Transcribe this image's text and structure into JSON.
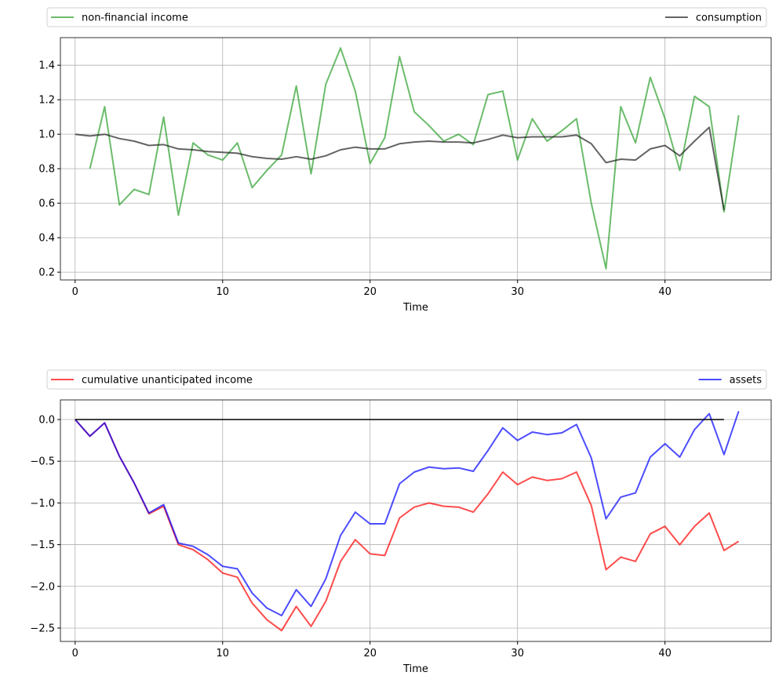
{
  "chart_data": [
    {
      "type": "line",
      "xlabel": "Time",
      "xlim": [
        -1,
        47.2
      ],
      "ylim": [
        0.155,
        1.56
      ],
      "xticks": [
        0,
        10,
        20,
        30,
        40
      ],
      "yticks": [
        0.2,
        0.4,
        0.6,
        0.8,
        1.0,
        1.2,
        1.4
      ],
      "grid": true,
      "legend_placement": "top, above plot (expanded)",
      "series": [
        {
          "name": "non-financial income",
          "color": "#2ca02c",
          "x_start": 1,
          "values": [
            0.8,
            1.16,
            0.59,
            0.68,
            0.65,
            1.1,
            0.53,
            0.95,
            0.88,
            0.85,
            0.95,
            0.69,
            0.79,
            0.88,
            1.28,
            0.77,
            1.29,
            1.5,
            1.25,
            0.83,
            0.98,
            1.45,
            1.13,
            1.05,
            0.96,
            1.0,
            0.94,
            1.23,
            1.25,
            0.85,
            1.09,
            0.96,
            1.02,
            1.09,
            0.6,
            0.22,
            1.16,
            0.95,
            1.33,
            1.09,
            0.79,
            1.22,
            1.16,
            0.55,
            1.11
          ]
        },
        {
          "name": "consumption",
          "color": "#222222",
          "x_start": 0,
          "values": [
            1.0,
            0.99,
            1.0,
            0.975,
            0.96,
            0.935,
            0.94,
            0.915,
            0.91,
            0.9,
            0.895,
            0.89,
            0.87,
            0.86,
            0.855,
            0.87,
            0.855,
            0.875,
            0.91,
            0.925,
            0.915,
            0.915,
            0.945,
            0.955,
            0.96,
            0.955,
            0.955,
            0.95,
            0.97,
            0.995,
            0.98,
            0.985,
            0.985,
            0.985,
            0.995,
            0.945,
            0.835,
            0.855,
            0.85,
            0.915,
            0.935,
            0.875,
            0.96,
            1.04,
            0.56
          ]
        }
      ]
    },
    {
      "type": "line",
      "xlabel": "Time",
      "xlim": [
        -1,
        47.2
      ],
      "ylim": [
        -2.66,
        0.235
      ],
      "xticks": [
        0,
        10,
        20,
        30,
        40
      ],
      "yticks": [
        0.0,
        -0.5,
        -1.0,
        -1.5,
        -2.0,
        -2.5
      ],
      "ytick_labels": [
        "0.0",
        "−0.5",
        "−1.0",
        "−1.5",
        "−2.0",
        "−2.5"
      ],
      "grid": true,
      "legend_placement": "top, above plot (expanded)",
      "series": [
        {
          "name": "cumulative unanticipated income",
          "color": "#ff0000",
          "x_start": 0,
          "values": [
            0,
            -0.2,
            -0.04,
            -0.44,
            -0.76,
            -1.13,
            -1.04,
            -1.5,
            -1.56,
            -1.68,
            -1.84,
            -1.89,
            -2.2,
            -2.4,
            -2.53,
            -2.24,
            -2.48,
            -2.18,
            -1.7,
            -1.44,
            -1.61,
            -1.63,
            -1.18,
            -1.05,
            -1.0,
            -1.04,
            -1.05,
            -1.11,
            -0.89,
            -0.63,
            -0.78,
            -0.69,
            -0.73,
            -0.71,
            -0.63,
            -1.03,
            -1.8,
            -1.65,
            -1.7,
            -1.37,
            -1.28,
            -1.5,
            -1.28,
            -1.12,
            -1.57,
            -1.46
          ]
        },
        {
          "name": "assets",
          "color": "#0000ff",
          "x_start": 0,
          "values": [
            0,
            -0.2,
            -0.04,
            -0.44,
            -0.76,
            -1.12,
            -1.02,
            -1.48,
            -1.52,
            -1.62,
            -1.76,
            -1.79,
            -2.08,
            -2.26,
            -2.35,
            -2.04,
            -2.24,
            -1.91,
            -1.39,
            -1.11,
            -1.25,
            -1.25,
            -0.77,
            -0.63,
            -0.57,
            -0.59,
            -0.58,
            -0.62,
            -0.37,
            -0.1,
            -0.25,
            -0.15,
            -0.18,
            -0.16,
            -0.06,
            -0.46,
            -1.19,
            -0.93,
            -0.88,
            -0.45,
            -0.29,
            -0.45,
            -0.12,
            0.07,
            -0.42,
            0.1
          ]
        },
        {
          "color": "#000000",
          "x_start": 0,
          "opacity": 1,
          "values": [
            0,
            0,
            0,
            0,
            0,
            0,
            0,
            0,
            0,
            0,
            0,
            0,
            0,
            0,
            0,
            0,
            0,
            0,
            0,
            0,
            0,
            0,
            0,
            0,
            0,
            0,
            0,
            0,
            0,
            0,
            0,
            0,
            0,
            0,
            0,
            0,
            0,
            0,
            0,
            0,
            0,
            0,
            0,
            0,
            0
          ]
        }
      ]
    }
  ]
}
